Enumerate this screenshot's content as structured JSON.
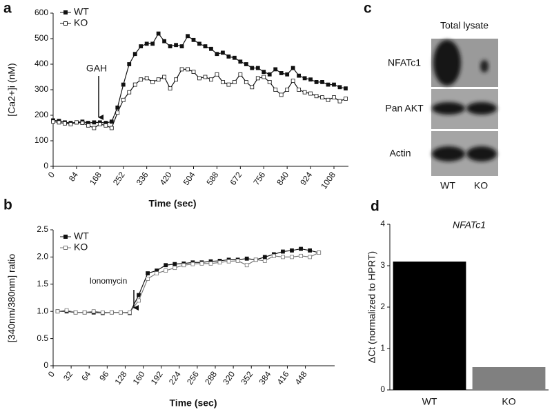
{
  "chart_data": [
    {
      "type": "line",
      "panel": "a",
      "y_label": "[Ca2+]i (nM)",
      "x_label": "Time (sec)",
      "annotation": "GAH",
      "legend": "upper left",
      "x": [
        0,
        21,
        42,
        63,
        84,
        105,
        126,
        147,
        168,
        189,
        210,
        231,
        252,
        273,
        294,
        315,
        336,
        357,
        378,
        399,
        420,
        441,
        462,
        483,
        504,
        525,
        546,
        567,
        588,
        609,
        630,
        651,
        672,
        693,
        714,
        735,
        756,
        777,
        798,
        819,
        840,
        861,
        882,
        903,
        924,
        945,
        966,
        987,
        1008,
        1029,
        1050
      ],
      "series": [
        {
          "name": "WT",
          "color": "#111111",
          "marker": "filled",
          "values": [
            180,
            178,
            172,
            170,
            172,
            175,
            170,
            172,
            172,
            170,
            175,
            230,
            320,
            400,
            440,
            470,
            480,
            480,
            520,
            490,
            470,
            475,
            470,
            510,
            495,
            480,
            470,
            460,
            440,
            445,
            430,
            425,
            410,
            400,
            385,
            385,
            370,
            360,
            380,
            365,
            360,
            385,
            355,
            345,
            340,
            330,
            330,
            320,
            320,
            310,
            305
          ]
        },
        {
          "name": "KO",
          "color": "#111111",
          "marker": "open",
          "values": [
            175,
            172,
            168,
            165,
            172,
            170,
            160,
            150,
            165,
            160,
            150,
            210,
            260,
            290,
            320,
            340,
            345,
            330,
            340,
            350,
            305,
            340,
            380,
            380,
            370,
            345,
            350,
            340,
            360,
            330,
            320,
            330,
            360,
            330,
            310,
            345,
            350,
            330,
            300,
            280,
            300,
            335,
            300,
            290,
            285,
            275,
            270,
            260,
            270,
            255,
            265
          ]
        }
      ],
      "xlim": [
        0,
        1060
      ],
      "xticks": [
        0,
        84,
        168,
        252,
        336,
        420,
        504,
        588,
        672,
        756,
        840,
        924,
        1008
      ],
      "ylim": [
        0,
        600
      ],
      "yticks": [
        0,
        100,
        200,
        300,
        400,
        500,
        600
      ]
    },
    {
      "type": "line",
      "panel": "b",
      "y_label": "[340nm/380nm] ratio",
      "x_label": "Time (sec)",
      "annotation": "Ionomycin",
      "legend": "upper left",
      "x": [
        8,
        24,
        40,
        56,
        72,
        88,
        104,
        120,
        136,
        152,
        168,
        184,
        200,
        216,
        232,
        248,
        264,
        280,
        296,
        312,
        328,
        344,
        360,
        376,
        392,
        408,
        424,
        440,
        456,
        472
      ],
      "series": [
        {
          "name": "WT",
          "color": "#111111",
          "marker": "filled",
          "values": [
            1.0,
            1.0,
            0.98,
            0.98,
            0.98,
            0.97,
            0.98,
            0.98,
            0.97,
            1.3,
            1.7,
            1.75,
            1.85,
            1.87,
            1.88,
            1.9,
            1.9,
            1.92,
            1.93,
            1.95,
            1.95,
            1.97,
            1.95,
            2.0,
            2.05,
            2.1,
            2.12,
            2.15,
            2.12,
            2.08
          ]
        },
        {
          "name": "KO",
          "color": "#777777",
          "marker": "open",
          "values": [
            1.0,
            1.02,
            0.98,
            0.98,
            1.0,
            0.98,
            0.98,
            0.98,
            0.98,
            1.2,
            1.6,
            1.7,
            1.75,
            1.8,
            1.85,
            1.87,
            1.88,
            1.88,
            1.9,
            1.92,
            1.93,
            1.85,
            1.95,
            1.93,
            2.02,
            2.0,
            2.0,
            2.02,
            2.0,
            2.08
          ]
        }
      ],
      "xlim": [
        0,
        500
      ],
      "xticks": [
        0,
        32,
        64,
        96,
        128,
        160,
        192,
        224,
        256,
        288,
        320,
        352,
        384,
        416,
        448
      ],
      "ylim": [
        0,
        2.5
      ],
      "yticks": [
        0,
        0.5,
        {
          "value": 1,
          "label": "1.0"
        },
        1.5,
        {
          "value": 2,
          "label": "2.0"
        },
        2.5
      ]
    },
    {
      "type": "bar",
      "panel": "d",
      "title": "NFATc1",
      "y_label": "ΔCt (normalized to HPRT)",
      "categories": [
        "WT",
        "KO"
      ],
      "values": [
        3.1,
        0.55
      ],
      "colors": [
        "#000000",
        "#808080"
      ],
      "ylim": [
        0,
        4
      ],
      "yticks": [
        0,
        1,
        2,
        3,
        4
      ]
    }
  ],
  "blot": {
    "panel": "c",
    "title": "Total lysate",
    "rows": [
      "NFATc1",
      "Pan AKT",
      "Actin"
    ],
    "lanes": [
      "WT",
      "KO"
    ]
  }
}
